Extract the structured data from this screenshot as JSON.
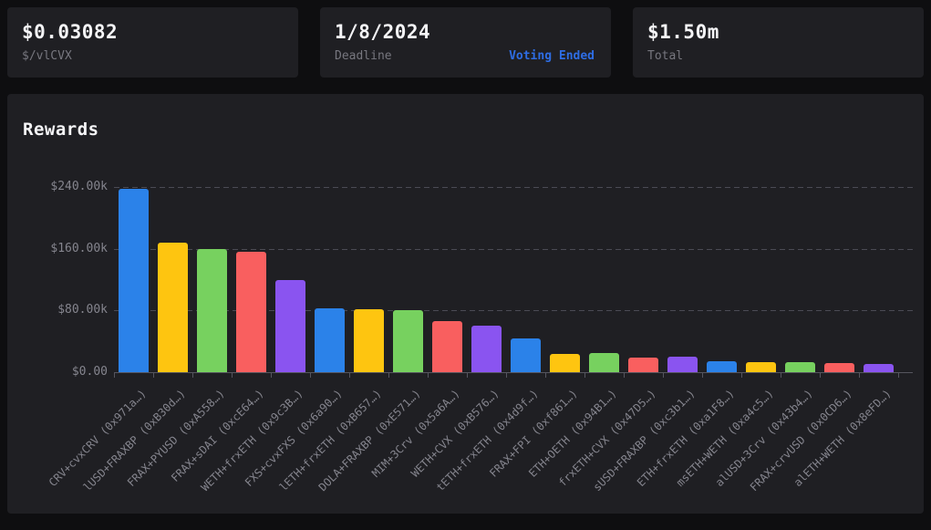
{
  "stats": [
    {
      "value": "$0.03082",
      "label": "$/vlCVX"
    },
    {
      "value": "1/8/2024",
      "label": "Deadline",
      "status": "Voting Ended"
    },
    {
      "value": "$1.50m",
      "label": "Total"
    }
  ],
  "chart": {
    "title": "Rewards"
  },
  "chart_data": {
    "type": "bar",
    "title": "Rewards",
    "categories": [
      "CRV+cvxCRV (0x971a…)",
      "lUSD+FRAXBP (0xB30d…)",
      "FRAX+PYUSD (0xA558…)",
      "FRAX+sDAI (0xcE64…)",
      "WETH+frxETH (0x9c3B…)",
      "FXS+cvxFXS (0x6a90…)",
      "lETH+frxETH (0xB657…)",
      "DOLA+FRAXBP (0xE571…)",
      "MIM+3Crv (0x5a6A…)",
      "WETH+CVX (0xB576…)",
      "tETH+frxETH (0x4d9f…)",
      "FRAX+FPI (0xf861…)",
      "ETH+OETH (0x94B1…)",
      "frxETH+CVX (0x47D5…)",
      "sUSD+FRAXBP (0xc3b1…)",
      "ETH+frxETH (0xa1F8…)",
      "msETH+WETH (0xa4c5…)",
      "alUSD+3Crv (0x43b4…)",
      "FRAX+crvUSD (0x0CD6…)",
      "alETH+WETH (0x8eFD…)"
    ],
    "values": [
      238000,
      168000,
      160000,
      156000,
      119000,
      83000,
      82000,
      80000,
      66000,
      60000,
      44000,
      24000,
      25000,
      19000,
      20000,
      14000,
      13000,
      13000,
      12000,
      11000
    ],
    "xlabel": "",
    "ylabel": "",
    "ylim": [
      0,
      240000
    ],
    "yticks": [
      {
        "label": "$240.00k",
        "value": 240000
      },
      {
        "label": "$160.00k",
        "value": 160000
      },
      {
        "label": "$80.00k",
        "value": 80000
      },
      {
        "label": "$0.00",
        "value": 0
      }
    ],
    "grid": "horizontal-dashed",
    "legend": "none",
    "bar_colors": [
      "#2b82e9",
      "#fec510",
      "#77d15f",
      "#f95f5f",
      "#8a54f0"
    ]
  },
  "colors": {
    "page_bg": "#0e0e10",
    "card_bg": "#1f1f23",
    "text_primary": "#f5f5f7",
    "text_muted": "#77777f",
    "accent_blue": "#2e6de4",
    "gridline": "#4b4b54",
    "axis": "#55555e"
  }
}
